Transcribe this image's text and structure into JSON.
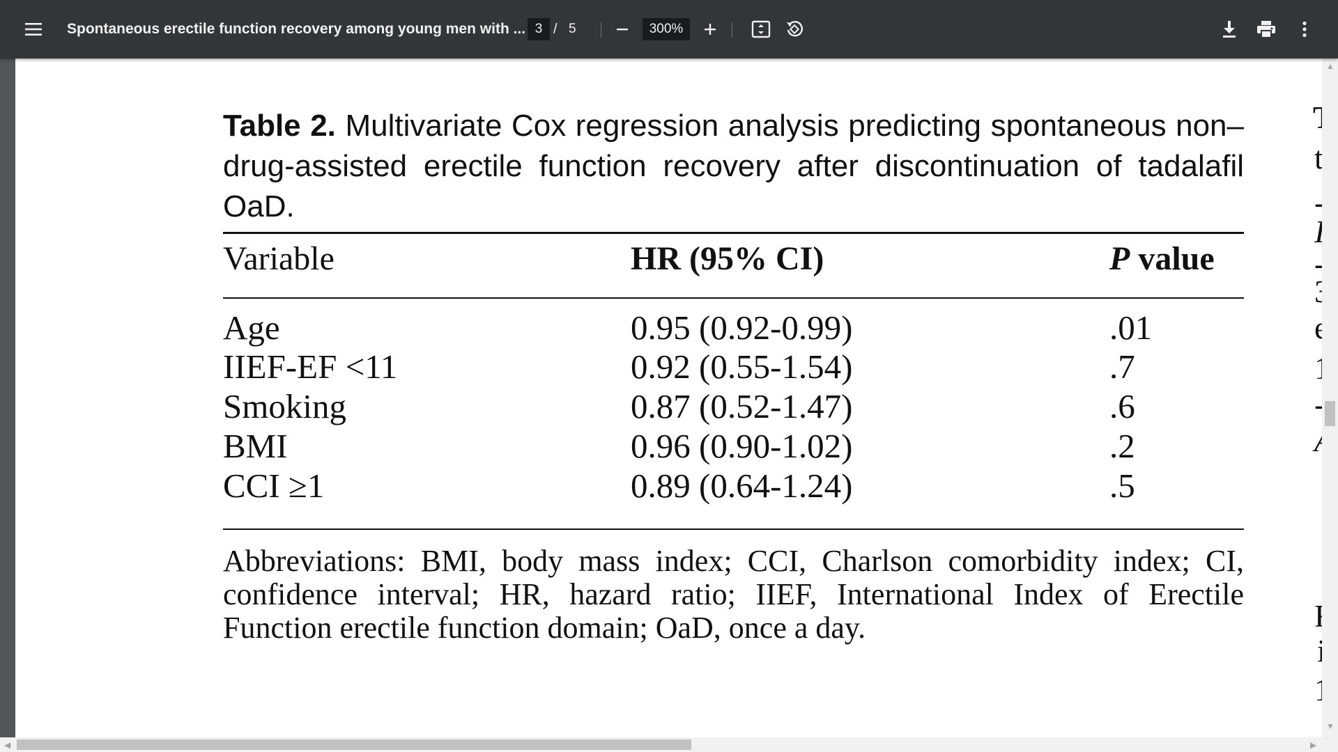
{
  "toolbar": {
    "title": "Spontaneous erectile function recovery among young men with ...",
    "current_page": "3",
    "page_separator": "/",
    "total_pages": "5",
    "zoom": "300%",
    "icons": [
      "menu-icon",
      "zoom-out-icon",
      "zoom-in-icon",
      "fit-page-icon",
      "rotate-icon",
      "download-icon",
      "print-icon",
      "more-icon"
    ]
  },
  "table": {
    "caption_label": "Table 2.",
    "caption_text": "Multivariate Cox regression analysis predicting spontaneous non–drug-assisted erectile function recovery after discontinuation of tadalafil OaD.",
    "headers": {
      "variable": "Variable",
      "hr": "HR (95% CI)",
      "p_italic": "P",
      "p_rest": " value"
    },
    "rows": [
      {
        "variable": "Age",
        "hr": "0.95 (0.92-0.99)",
        "p": ".01"
      },
      {
        "variable": "IIEF-EF <11",
        "hr": "0.92 (0.55-1.54)",
        "p": ".7"
      },
      {
        "variable": "Smoking",
        "hr": "0.87 (0.52-1.47)",
        "p": ".6"
      },
      {
        "variable": "BMI",
        "hr": "0.96 (0.90-1.02)",
        "p": ".2"
      },
      {
        "variable": "CCI ≥1",
        "hr": "0.89 (0.64-1.24)",
        "p": ".5"
      }
    ],
    "abbreviations": "Abbreviations: BMI, body mass index; CCI, Charlson comorbidity index; CI, confidence interval; HR, hazard ratio; IIEF, International Index of Erectile Function erectile function domain; OaD, once a day."
  },
  "next_column_fragments": [
    "T",
    "t",
    "-",
    "I",
    "-",
    "3",
    "e",
    "1",
    "-",
    "A",
    "F",
    "i",
    "1"
  ]
}
